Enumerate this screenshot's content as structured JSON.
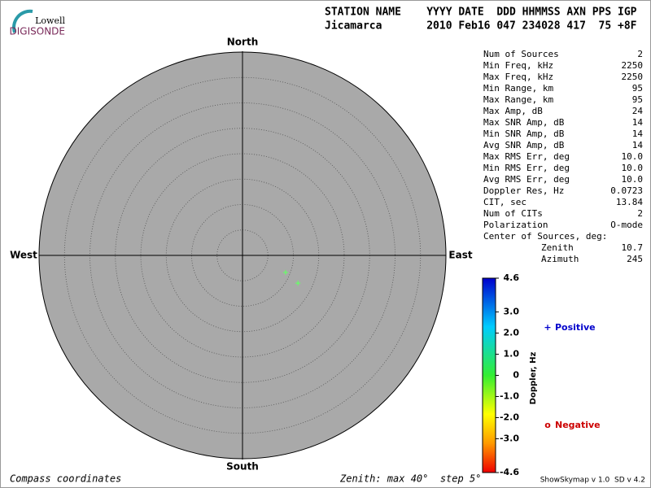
{
  "chart_data": {
    "type": "skymap",
    "logo": {
      "top": "Lowell",
      "bottom": "DIGISONDE"
    },
    "header": {
      "labels": "STATION NAME    YYYY DATE  DDD HHMMSS AXN PPS IGP",
      "values": "Jicamarca       2010 Feb16 047 234028 417  75 +8F"
    },
    "directions": {
      "north": "North",
      "south": "South",
      "east": "East",
      "west": "West"
    },
    "rlim": [
      0,
      40
    ],
    "rticks": [
      5,
      10,
      15,
      20,
      25,
      30,
      35,
      40
    ],
    "series": [
      {
        "name": "Positive",
        "marker": "+",
        "color": "#66ff66",
        "x": [
          111.6,
          116.6
        ],
        "values": [
          9.1,
          12.2
        ]
      }
    ],
    "stats": [
      {
        "label": "Num of Sources",
        "value": "2"
      },
      {
        "label": "Min Freq, kHz",
        "value": "2250"
      },
      {
        "label": "Max Freq, kHz",
        "value": "2250"
      },
      {
        "label": "Min Range, km",
        "value": "95"
      },
      {
        "label": "Max Range, km",
        "value": "95"
      },
      {
        "label": "Max Amp, dB",
        "value": "24"
      },
      {
        "label": "Max SNR Amp, dB",
        "value": "14"
      },
      {
        "label": "Min SNR Amp, dB",
        "value": "14"
      },
      {
        "label": "Avg SNR Amp, dB",
        "value": "14"
      },
      {
        "label": "Max RMS Err, deg",
        "value": "10.0"
      },
      {
        "label": "Min RMS Err, deg",
        "value": "10.0"
      },
      {
        "label": "Avg RMS Err, deg",
        "value": "10.0"
      },
      {
        "label": "Doppler Res, Hz",
        "value": "0.0723"
      },
      {
        "label": "CIT, sec",
        "value": "13.84"
      },
      {
        "label": "Num of CITs",
        "value": "2"
      },
      {
        "label": "Polarization",
        "value": "O-mode"
      }
    ],
    "center": {
      "title": "Center of Sources, deg:",
      "rows": [
        {
          "label": "Zenith",
          "value": "10.7"
        },
        {
          "label": "Azimuth",
          "value": "245"
        }
      ]
    },
    "colorbar": {
      "label": "Doppler, Hz",
      "clim": [
        -4.6,
        4.6
      ],
      "ticks": [
        4.6,
        {
          "value": 3,
          "label": "3.0"
        },
        {
          "value": 2,
          "label": "2.0"
        },
        {
          "value": 1,
          "label": "1.0"
        },
        0,
        {
          "value": -1,
          "label": "-1.0"
        },
        {
          "value": -2,
          "label": "-2.0"
        },
        {
          "value": -3,
          "label": "-3.0"
        },
        -4.6
      ]
    },
    "legend": [
      {
        "symbol": "+",
        "label": "Positive",
        "color": "#0000cc"
      },
      {
        "symbol": "o",
        "label": "Negative",
        "color": "#cc0000"
      }
    ],
    "footer": {
      "left": "Compass coordinates",
      "middle": "Zenith: max 40°  step 5°",
      "right": "ShowSkymap v 1.0  SD v 4.2"
    }
  }
}
